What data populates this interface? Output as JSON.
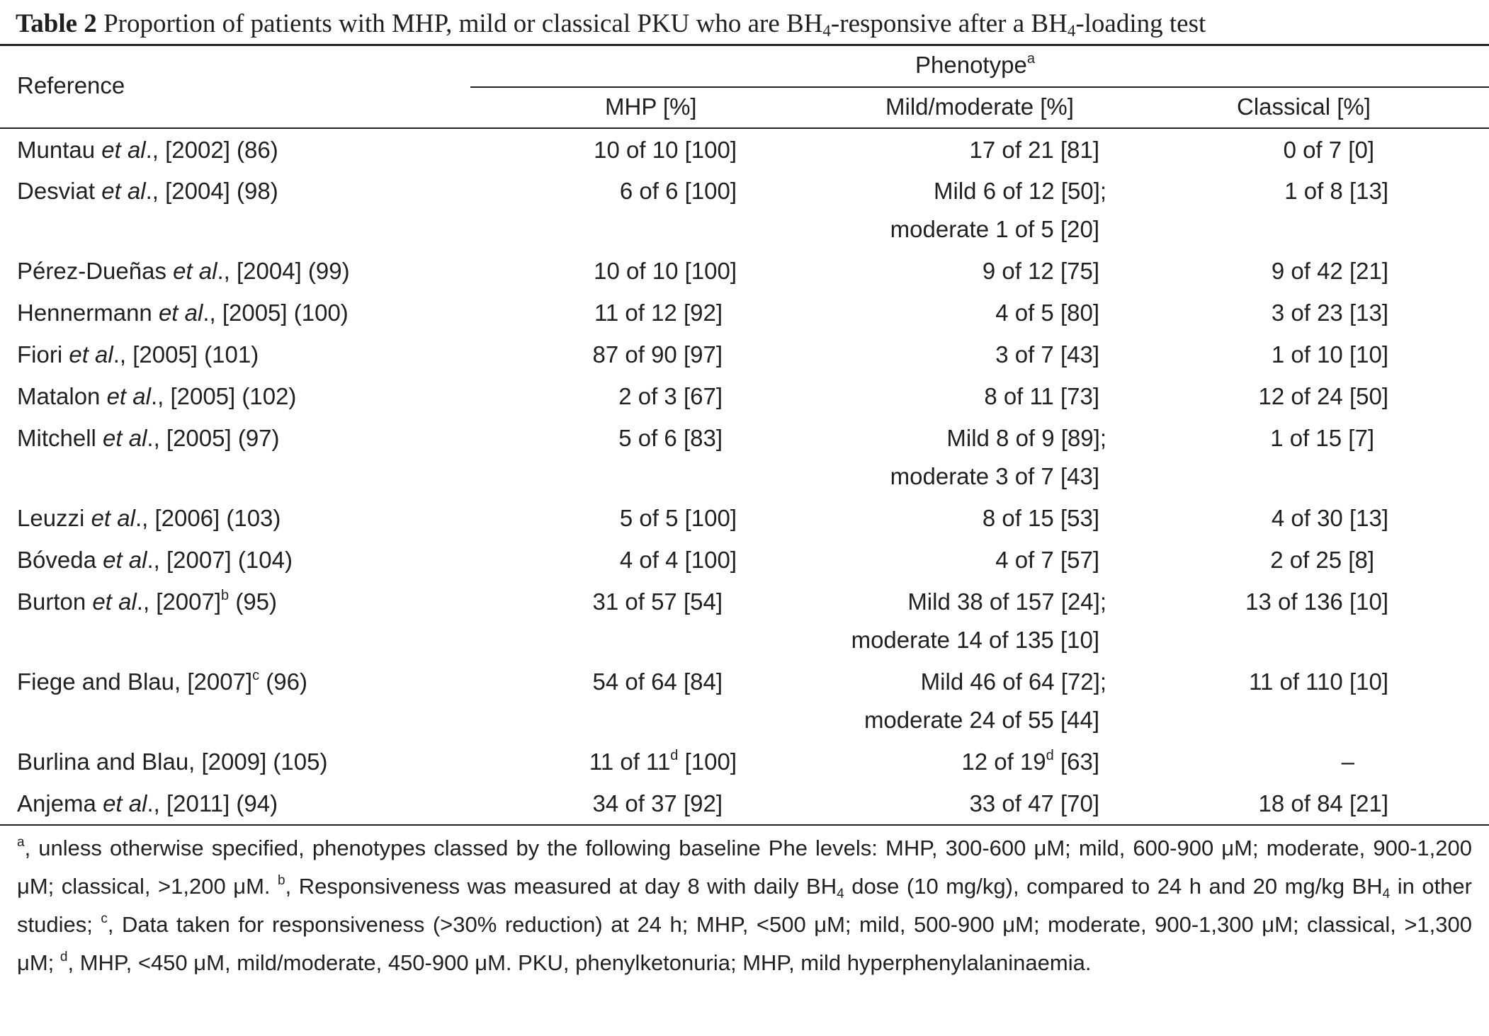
{
  "caption": {
    "label": "Table 2",
    "text_before": " Proportion of patients with MHP, mild or classical PKU who are BH",
    "text_mid": "-responsive after a BH",
    "text_after": "-loading test",
    "subscript": "4"
  },
  "header": {
    "reference": "Reference",
    "phenotype": "Phenotype",
    "phenotype_sup": "a",
    "columns": [
      "MHP [%]",
      "Mild/moderate [%]",
      "Classical [%]"
    ]
  },
  "rows": [
    {
      "author": "Muntau ",
      "etal": "et al",
      "year": "., [2002] (86)",
      "mhp": "10 of 10 [100]",
      "mild": "17 of 21 [81]",
      "classical": "0 of 7 [0]"
    },
    {
      "author": "Desviat ",
      "etal": "et al",
      "year": "., [2004] (98)",
      "mhp": "6 of 6 [100]",
      "mild": "Mild 6 of 12 [50];",
      "mild2": "moderate 1 of 5 [20]",
      "classical": "1 of 8 [13]"
    },
    {
      "author": "Pérez-Dueñas ",
      "etal": "et al",
      "year": "., [2004] (99)",
      "mhp": "10 of 10 [100]",
      "mild": "9 of 12 [75]",
      "classical": "9 of 42 [21]"
    },
    {
      "author": "Hennermann ",
      "etal": "et al",
      "year": "., [2005] (100)",
      "mhp": "11 of 12 [92]",
      "mild": "4 of 5 [80]",
      "classical": "3 of 23 [13]"
    },
    {
      "author": "Fiori ",
      "etal": "et al",
      "year": "., [2005] (101)",
      "mhp": "87 of 90 [97]",
      "mild": "3 of 7 [43]",
      "classical": "1 of 10 [10]"
    },
    {
      "author": "Matalon ",
      "etal": "et al",
      "year": "., [2005] (102)",
      "mhp": "2 of 3 [67]",
      "mild": "8 of 11 [73]",
      "classical": "12 of 24 [50]"
    },
    {
      "author": "Mitchell ",
      "etal": "et al",
      "year": "., [2005] (97)",
      "mhp": "5 of 6 [83]",
      "mild": "Mild 8 of 9 [89];",
      "mild2": "moderate 3 of 7 [43]",
      "classical": "1 of 15 [7]"
    },
    {
      "author": "Leuzzi ",
      "etal": "et al",
      "year": "., [2006] (103)",
      "mhp": "5 of 5 [100]",
      "mild": "8 of 15 [53]",
      "classical": "4 of 30 [13]"
    },
    {
      "author": "Bóveda ",
      "etal": "et al",
      "year": "., [2007] (104)",
      "mhp": "4 of 4 [100]",
      "mild": "4 of 7 [57]",
      "classical": "2 of 25 [8]"
    },
    {
      "author": "Burton ",
      "etal": "et al",
      "year": "., [2007]",
      "ref_sup": "b",
      "ref_tail": " (95)",
      "mhp": "31 of 57 [54]",
      "mild": "Mild 38 of 157 [24];",
      "mild2": "moderate 14 of 135 [10]",
      "classical": "13 of 136 [10]"
    },
    {
      "author": "Fiege and Blau, [2007]",
      "ref_sup": "c",
      "ref_tail": " (96)",
      "mhp": "54 of 64 [84]",
      "mild": "Mild 46 of 64 [72];",
      "mild2": "moderate 24 of 55 [44]",
      "classical": "11 of 110 [10]"
    },
    {
      "author": "Burlina and Blau, [2009] (105)",
      "mhp": "11 of 11",
      "mhp_sup": "d",
      "mhp_tail": " [100]",
      "mild": "12 of 19",
      "mild_sup": "d",
      "mild_tail": " [63]",
      "classical": "–"
    },
    {
      "author": "Anjema ",
      "etal": "et al",
      "year": "., [2011] (94)",
      "mhp": "34 of 37 [92]",
      "mild": "33 of 47 [70]",
      "classical": "18 of 84 [21]"
    }
  ],
  "footnote": {
    "a_mark": "a",
    "a_text": ", unless otherwise specified, phenotypes classed by the following baseline Phe levels: MHP, 300-600 μM; mild, 600-900 μM; moderate, 900-1,200 μM; classical, >1,200 μM. ",
    "b_mark": "b",
    "b_text1": ", Responsiveness was measured at day 8 with daily BH",
    "b_text2": " dose (10 mg/kg), compared to 24 h and 20 mg/kg BH",
    "b_text3": " in other studies; ",
    "sub4": "4",
    "c_mark": "c",
    "c_text": ", Data taken for responsiveness (>30% reduction) at 24 h; MHP, <500 μM; mild, 500-900 μM; moderate, 900-1,300 μM; classical, >1,300 μM; ",
    "d_mark": "d",
    "d_text": ", MHP, <450 μM, mild/moderate, 450-900 μM. PKU, phenylketonuria; MHP, mild hyperphenylalaninaemia."
  }
}
